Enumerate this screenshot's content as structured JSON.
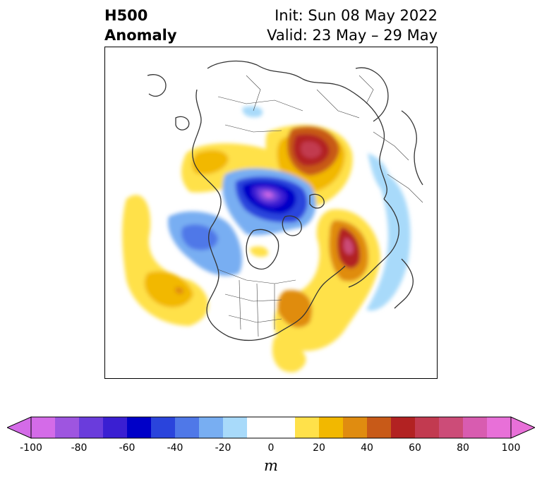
{
  "title": {
    "left_line1": "H500",
    "left_line2": "Anomaly",
    "right_line1": "Init: Sun 08 May 2022",
    "right_line2": "Valid: 23 May – 29 May"
  },
  "colorbar": {
    "unit_label": "m",
    "levels": [
      -100,
      -90,
      -80,
      -70,
      -60,
      -50,
      -40,
      -30,
      -20,
      -10,
      10,
      20,
      30,
      40,
      50,
      60,
      70,
      80,
      90,
      100
    ],
    "tick_values": [
      -100,
      -80,
      -60,
      -40,
      -20,
      0,
      20,
      40,
      60,
      80,
      100
    ],
    "tick_labels": [
      "-100",
      "-80",
      "-60",
      "-40",
      "-20",
      "0",
      "20",
      "40",
      "60",
      "80",
      "100"
    ],
    "colors": [
      "#d46be8",
      "#9e55e0",
      "#6a3cdc",
      "#3a1fd2",
      "#0000c8",
      "#2a44dc",
      "#4f78e8",
      "#78aef2",
      "#a8dafa",
      "#ffffff",
      "#ffe14a",
      "#f2b800",
      "#e08c10",
      "#c85a18",
      "#b22222",
      "#c23a50",
      "#cc4c78",
      "#d85cb0",
      "#e870d8"
    ],
    "extend_low_color": "#d46be8",
    "extend_high_color": "#e870d8"
  }
}
